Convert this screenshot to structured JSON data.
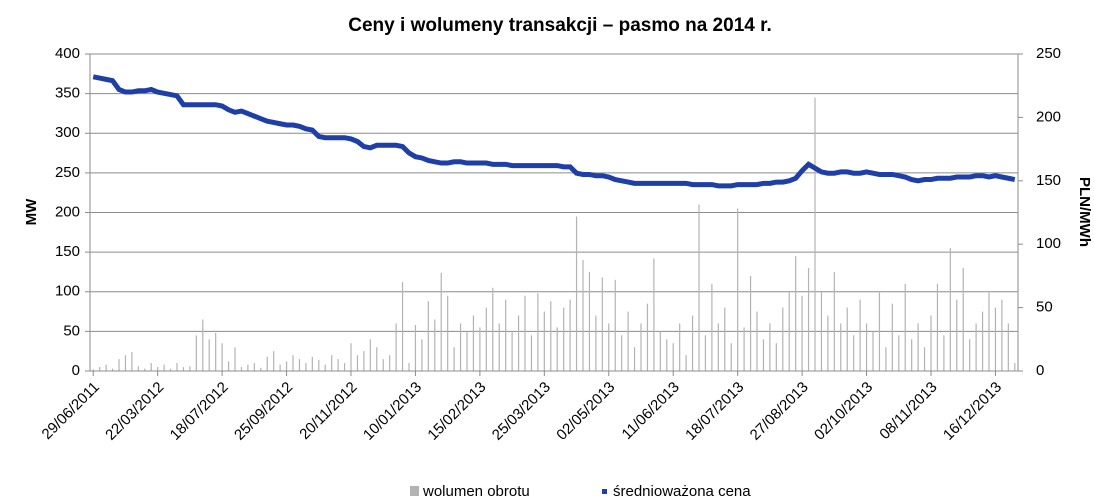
{
  "chart_data": {
    "type": "bar-line",
    "title": "Ceny i wolumeny transakcji – pasmo na 2014 r.",
    "y_label": "MW",
    "y2_label": "PLN/MWh",
    "categories": [
      "29/06/2011",
      null,
      null,
      null,
      null,
      null,
      null,
      null,
      null,
      null,
      "22/03/2012",
      null,
      null,
      null,
      null,
      null,
      null,
      null,
      null,
      null,
      "18/07/2012",
      null,
      null,
      null,
      null,
      null,
      null,
      null,
      null,
      null,
      "25/09/2012",
      null,
      null,
      null,
      null,
      null,
      null,
      null,
      null,
      null,
      "20/11/2012",
      null,
      null,
      null,
      null,
      null,
      null,
      null,
      null,
      null,
      "10/01/2013",
      null,
      null,
      null,
      null,
      null,
      null,
      null,
      null,
      null,
      "15/02/2013",
      null,
      null,
      null,
      null,
      null,
      null,
      null,
      null,
      null,
      "25/03/2013",
      null,
      null,
      null,
      null,
      null,
      null,
      null,
      null,
      null,
      "02/05/2013",
      null,
      null,
      null,
      null,
      null,
      null,
      null,
      null,
      null,
      "11/06/2013",
      null,
      null,
      null,
      null,
      null,
      null,
      null,
      null,
      null,
      "18/07/2013",
      null,
      null,
      null,
      null,
      null,
      null,
      null,
      null,
      null,
      "27/08/2013",
      null,
      null,
      null,
      null,
      null,
      null,
      null,
      null,
      null,
      "02/10/2013",
      null,
      null,
      null,
      null,
      null,
      null,
      null,
      null,
      null,
      "08/11/2013",
      null,
      null,
      null,
      null,
      null,
      null,
      null,
      null,
      null,
      "16/12/2013",
      null,
      null,
      null
    ],
    "series": [
      {
        "name": "wolumen obrotu",
        "type": "bar",
        "color": "#b3b3b3",
        "values": [
          2,
          5,
          8,
          3,
          15,
          20,
          24,
          6,
          3,
          10,
          5,
          8,
          3,
          10,
          5,
          6,
          45,
          65,
          40,
          48,
          35,
          12,
          30,
          5,
          8,
          10,
          4,
          18,
          25,
          8,
          12,
          20,
          15,
          10,
          18,
          14,
          8,
          20,
          15,
          10,
          35,
          20,
          25,
          40,
          30,
          15,
          20,
          60,
          112,
          10,
          58,
          40,
          88,
          65,
          124,
          95,
          30,
          60,
          50,
          70,
          55,
          80,
          105,
          60,
          90,
          50,
          70,
          95,
          45,
          98,
          75,
          88,
          55,
          80,
          90,
          195,
          140,
          125,
          70,
          118,
          60,
          115,
          45,
          75,
          30,
          60,
          85,
          142,
          50,
          40,
          35,
          60,
          20,
          70,
          210,
          45,
          110,
          60,
          80,
          35,
          205,
          55,
          120,
          75,
          40,
          60,
          35,
          80,
          100,
          145,
          95,
          130,
          345,
          100,
          70,
          125,
          60,
          80,
          45,
          90,
          60,
          50,
          100,
          30,
          85,
          45,
          110,
          40,
          60,
          30,
          70,
          110,
          45,
          155,
          90,
          130,
          40,
          60,
          75,
          100,
          80,
          90,
          60,
          10
        ]
      },
      {
        "name": "średnioważona cena",
        "type": "line",
        "axis": "y2",
        "color": "#1f3fa8",
        "values": [
          232,
          231,
          230,
          229,
          222,
          220,
          220,
          221,
          221,
          222,
          220,
          219,
          218,
          217,
          210,
          210,
          210,
          210,
          210,
          210,
          209,
          206,
          204,
          205,
          203,
          201,
          199,
          197,
          196,
          195,
          194,
          194,
          193,
          191,
          190,
          185,
          184,
          184,
          184,
          184,
          183,
          181,
          177,
          176,
          178,
          178,
          178,
          178,
          177,
          172,
          169,
          168,
          166,
          165,
          164,
          164,
          165,
          165,
          164,
          164,
          164,
          164,
          163,
          163,
          163,
          162,
          162,
          162,
          162,
          162,
          162,
          162,
          162,
          161,
          161,
          156,
          155,
          155,
          154,
          154,
          153,
          151,
          150,
          149,
          148,
          148,
          148,
          148,
          148,
          148,
          148,
          148,
          148,
          147,
          147,
          147,
          147,
          146,
          146,
          146,
          147,
          147,
          147,
          147,
          148,
          148,
          149,
          149,
          150,
          152,
          158,
          163,
          160,
          157,
          156,
          156,
          157,
          157,
          156,
          156,
          157,
          156,
          155,
          155,
          155,
          154,
          153,
          151,
          150,
          151,
          151,
          152,
          152,
          152,
          153,
          153,
          153,
          154,
          154,
          153,
          154,
          153,
          152,
          151
        ]
      }
    ],
    "ylim": [
      0,
      400
    ],
    "yticks": [
      0,
      50,
      100,
      150,
      200,
      250,
      300,
      350,
      400
    ],
    "y2lim": [
      0,
      250
    ],
    "y2ticks": [
      0,
      50,
      100,
      150,
      200,
      250
    ],
    "grid": true,
    "legend": "bottom"
  }
}
